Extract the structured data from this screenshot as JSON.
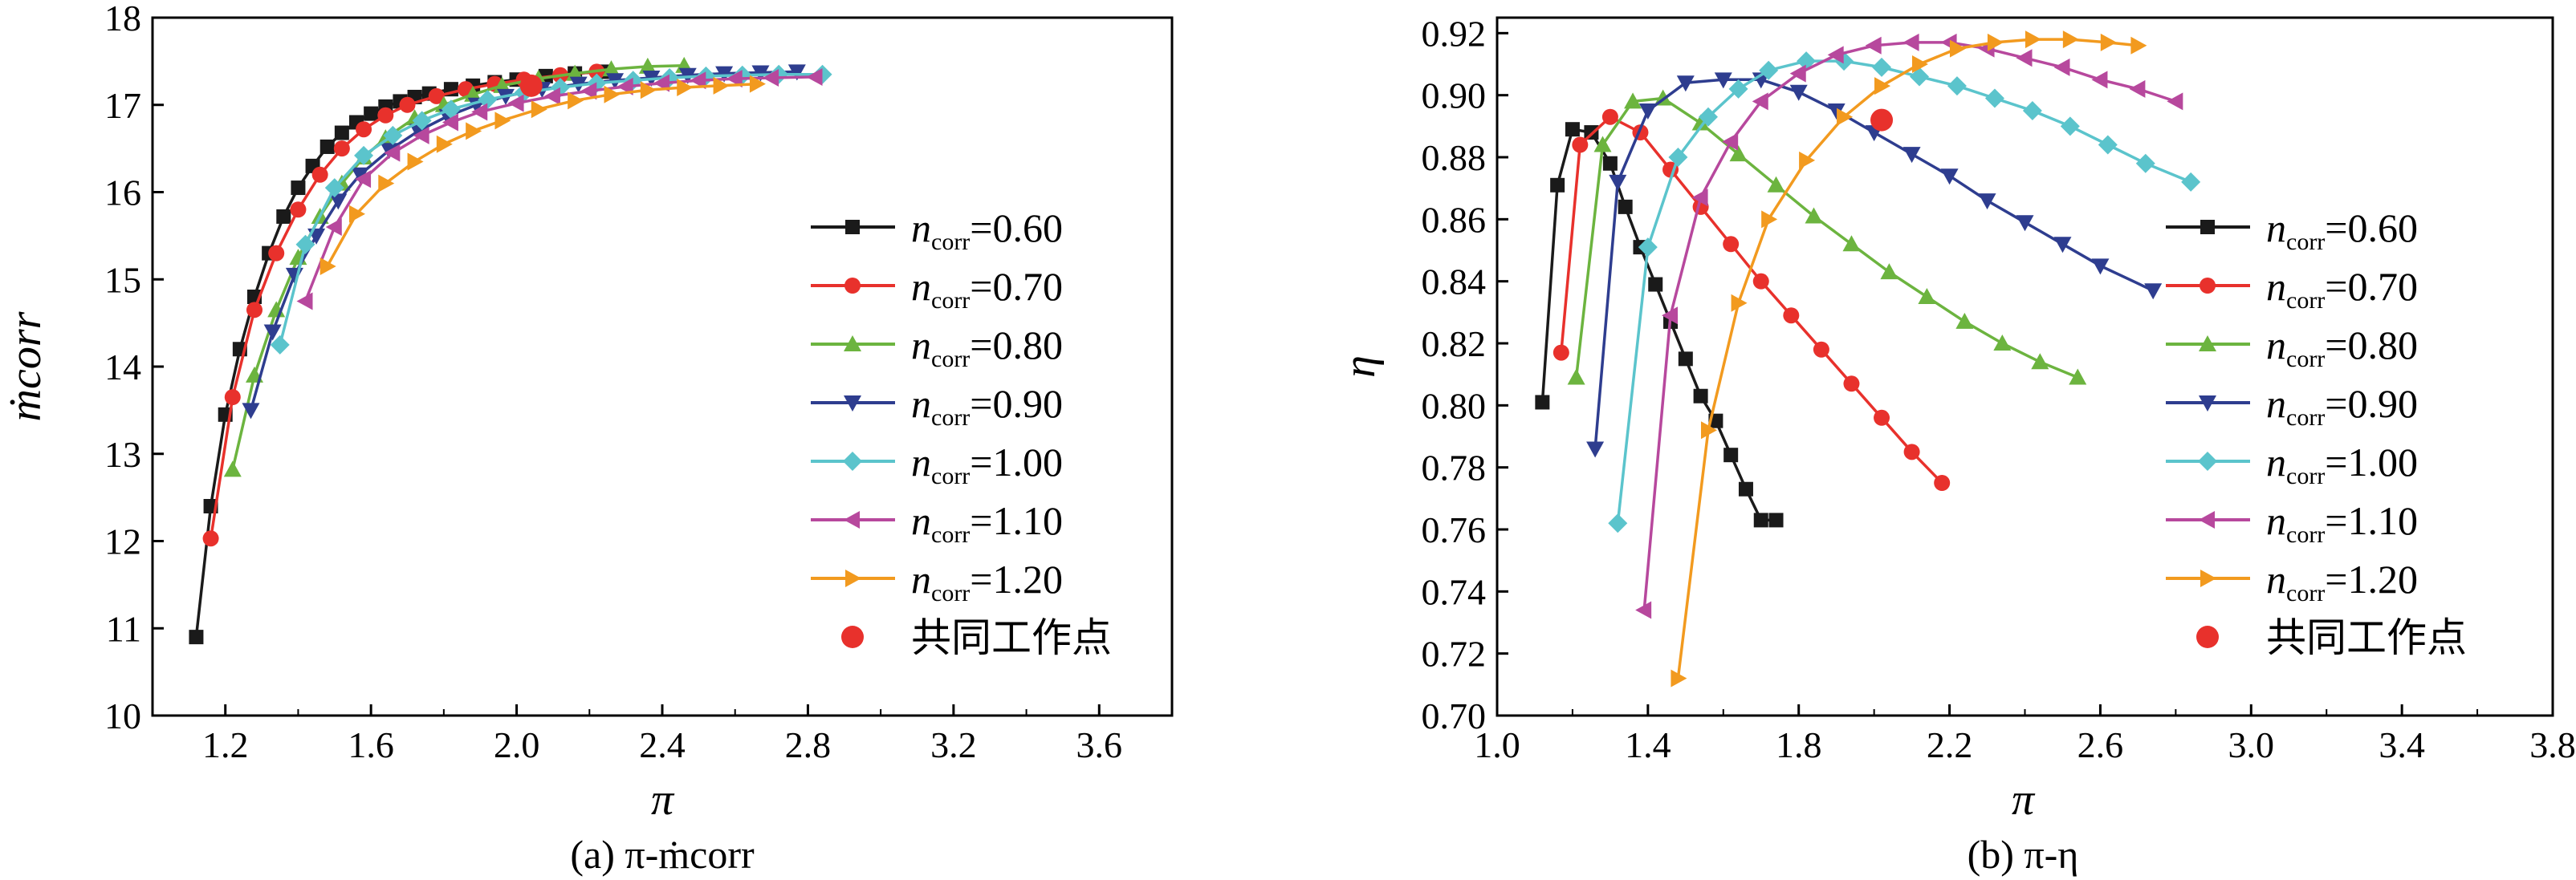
{
  "chart_data": [
    {
      "type": "line",
      "xlabel": "π",
      "ylabel": "ṁcorr",
      "caption": "(a) π-ṁcorr",
      "xlim": [
        1.0,
        3.8
      ],
      "ylim": [
        10,
        18
      ],
      "xticks": [
        "1.2",
        "1.6",
        "2.0",
        "2.4",
        "2.8",
        "3.2",
        "3.6"
      ],
      "yticks": [
        "10",
        "11",
        "12",
        "13",
        "14",
        "15",
        "16",
        "17",
        "18"
      ],
      "legend_position": "right",
      "series": [
        {
          "name": "ncorr=0.60",
          "color": "#1a1a1a",
          "marker": "square",
          "x": [
            1.12,
            1.16,
            1.2,
            1.24,
            1.28,
            1.32,
            1.36,
            1.4,
            1.44,
            1.48,
            1.52,
            1.56,
            1.6,
            1.64,
            1.68,
            1.72,
            1.76,
            1.82,
            1.88,
            1.94,
            2.0,
            2.08,
            2.16,
            2.24
          ],
          "y": [
            10.9,
            12.4,
            13.45,
            14.2,
            14.8,
            15.3,
            15.72,
            16.05,
            16.3,
            16.52,
            16.68,
            16.8,
            16.9,
            16.98,
            17.04,
            17.09,
            17.13,
            17.18,
            17.22,
            17.26,
            17.29,
            17.33,
            17.36,
            17.38
          ]
        },
        {
          "name": "ncorr=0.70",
          "color": "#e8312c",
          "marker": "circle",
          "x": [
            1.16,
            1.22,
            1.28,
            1.34,
            1.4,
            1.46,
            1.52,
            1.58,
            1.64,
            1.7,
            1.78,
            1.86,
            1.94,
            2.02,
            2.12,
            2.22
          ],
          "y": [
            12.03,
            13.65,
            14.65,
            15.3,
            15.8,
            16.2,
            16.5,
            16.72,
            16.88,
            17.0,
            17.1,
            17.18,
            17.24,
            17.29,
            17.34,
            17.38
          ]
        },
        {
          "name": "ncorr=0.80",
          "color": "#6cb43f",
          "marker": "triangle-up",
          "x": [
            1.22,
            1.28,
            1.34,
            1.4,
            1.46,
            1.52,
            1.58,
            1.64,
            1.72,
            1.8,
            1.88,
            1.96,
            2.06,
            2.16,
            2.26,
            2.36,
            2.46
          ],
          "y": [
            12.82,
            13.9,
            14.65,
            15.25,
            15.72,
            16.1,
            16.4,
            16.62,
            16.85,
            17.0,
            17.12,
            17.22,
            17.3,
            17.36,
            17.41,
            17.44,
            17.45
          ]
        },
        {
          "name": "ncorr=0.90",
          "color": "#2e3d8f",
          "marker": "triangle-down",
          "x": [
            1.27,
            1.33,
            1.39,
            1.45,
            1.51,
            1.57,
            1.65,
            1.73,
            1.81,
            1.89,
            1.97,
            2.07,
            2.17,
            2.27,
            2.37,
            2.47,
            2.57,
            2.67,
            2.77
          ],
          "y": [
            13.5,
            14.4,
            15.05,
            15.5,
            15.9,
            16.2,
            16.48,
            16.7,
            16.87,
            17.0,
            17.1,
            17.18,
            17.24,
            17.28,
            17.31,
            17.34,
            17.36,
            17.37,
            17.38
          ]
        },
        {
          "name": "ncorr=1.00",
          "color": "#5bc4cc",
          "marker": "diamond",
          "x": [
            1.35,
            1.42,
            1.5,
            1.58,
            1.66,
            1.74,
            1.82,
            1.92,
            2.02,
            2.12,
            2.22,
            2.32,
            2.42,
            2.52,
            2.62,
            2.72,
            2.84
          ],
          "y": [
            14.25,
            15.4,
            16.05,
            16.42,
            16.65,
            16.82,
            16.95,
            17.06,
            17.14,
            17.2,
            17.25,
            17.28,
            17.31,
            17.33,
            17.34,
            17.35,
            17.35
          ]
        },
        {
          "name": "ncorr=1.10",
          "color": "#b7489d",
          "marker": "triangle-left",
          "x": [
            1.42,
            1.5,
            1.58,
            1.66,
            1.74,
            1.82,
            1.9,
            2.0,
            2.1,
            2.2,
            2.3,
            2.4,
            2.5,
            2.6,
            2.7,
            2.82
          ],
          "y": [
            14.75,
            15.6,
            16.15,
            16.45,
            16.65,
            16.8,
            16.92,
            17.02,
            17.1,
            17.16,
            17.21,
            17.25,
            17.28,
            17.3,
            17.31,
            17.32
          ]
        },
        {
          "name": "ncorr=1.20",
          "color": "#f29a1f",
          "marker": "triangle-right",
          "x": [
            1.48,
            1.56,
            1.64,
            1.72,
            1.8,
            1.88,
            1.96,
            2.06,
            2.16,
            2.26,
            2.36,
            2.46,
            2.56,
            2.66
          ],
          "y": [
            15.15,
            15.75,
            16.1,
            16.35,
            16.55,
            16.7,
            16.82,
            16.95,
            17.05,
            17.12,
            17.17,
            17.2,
            17.22,
            17.24
          ]
        },
        {
          "name": "共同工作点",
          "color": "#e8312c",
          "marker": "big-circle",
          "x": [
            2.04
          ],
          "y": [
            17.22
          ]
        }
      ]
    },
    {
      "type": "line",
      "xlabel": "π",
      "ylabel": "η",
      "caption": "(b) π-η",
      "xlim": [
        1.0,
        3.8
      ],
      "ylim": [
        0.7,
        0.925
      ],
      "xticks": [
        "1.0",
        "1.4",
        "1.8",
        "2.2",
        "2.6",
        "3.0",
        "3.4",
        "3.8"
      ],
      "yticks": [
        "0.70",
        "0.72",
        "0.74",
        "0.76",
        "0.78",
        "0.80",
        "0.82",
        "0.84",
        "0.86",
        "0.88",
        "0.90",
        "0.92"
      ],
      "legend_position": "right",
      "series": [
        {
          "name": "ncorr=0.60",
          "color": "#1a1a1a",
          "marker": "square",
          "x": [
            1.12,
            1.16,
            1.2,
            1.25,
            1.3,
            1.34,
            1.38,
            1.42,
            1.46,
            1.5,
            1.54,
            1.58,
            1.62,
            1.66,
            1.7,
            1.74
          ],
          "y": [
            0.801,
            0.871,
            0.889,
            0.888,
            0.878,
            0.864,
            0.851,
            0.839,
            0.827,
            0.815,
            0.803,
            0.795,
            0.784,
            0.773,
            0.763,
            0.763
          ]
        },
        {
          "name": "ncorr=0.70",
          "color": "#e8312c",
          "marker": "circle",
          "x": [
            1.17,
            1.22,
            1.3,
            1.38,
            1.46,
            1.54,
            1.62,
            1.7,
            1.78,
            1.86,
            1.94,
            2.02,
            2.1,
            2.18
          ],
          "y": [
            0.817,
            0.884,
            0.893,
            0.888,
            0.876,
            0.864,
            0.852,
            0.84,
            0.829,
            0.818,
            0.807,
            0.796,
            0.785,
            0.775
          ]
        },
        {
          "name": "ncorr=0.80",
          "color": "#6cb43f",
          "marker": "triangle-up",
          "x": [
            1.21,
            1.28,
            1.36,
            1.44,
            1.54,
            1.64,
            1.74,
            1.84,
            1.94,
            2.04,
            2.14,
            2.24,
            2.34,
            2.44,
            2.54
          ],
          "y": [
            0.809,
            0.884,
            0.898,
            0.899,
            0.891,
            0.881,
            0.871,
            0.861,
            0.852,
            0.843,
            0.835,
            0.827,
            0.82,
            0.814,
            0.809
          ]
        },
        {
          "name": "ncorr=0.90",
          "color": "#2e3d8f",
          "marker": "triangle-down",
          "x": [
            1.26,
            1.32,
            1.4,
            1.5,
            1.6,
            1.7,
            1.8,
            1.9,
            2.0,
            2.1,
            2.2,
            2.3,
            2.4,
            2.5,
            2.6,
            2.74
          ],
          "y": [
            0.786,
            0.872,
            0.895,
            0.904,
            0.905,
            0.905,
            0.901,
            0.895,
            0.888,
            0.881,
            0.874,
            0.866,
            0.859,
            0.852,
            0.845,
            0.837
          ]
        },
        {
          "name": "ncorr=1.00",
          "color": "#5bc4cc",
          "marker": "diamond",
          "x": [
            1.32,
            1.4,
            1.48,
            1.56,
            1.64,
            1.72,
            1.82,
            1.92,
            2.02,
            2.12,
            2.22,
            2.32,
            2.42,
            2.52,
            2.62,
            2.72,
            2.84
          ],
          "y": [
            0.762,
            0.851,
            0.88,
            0.893,
            0.902,
            0.908,
            0.911,
            0.911,
            0.909,
            0.906,
            0.903,
            0.899,
            0.895,
            0.89,
            0.884,
            0.878,
            0.872
          ]
        },
        {
          "name": "ncorr=1.10",
          "color": "#b7489d",
          "marker": "triangle-left",
          "x": [
            1.39,
            1.46,
            1.54,
            1.62,
            1.7,
            1.8,
            1.9,
            2.0,
            2.1,
            2.2,
            2.3,
            2.4,
            2.5,
            2.6,
            2.7,
            2.8
          ],
          "y": [
            0.734,
            0.829,
            0.867,
            0.885,
            0.898,
            0.907,
            0.913,
            0.916,
            0.917,
            0.917,
            0.915,
            0.912,
            0.909,
            0.905,
            0.902,
            0.898
          ]
        },
        {
          "name": "ncorr=1.20",
          "color": "#f29a1f",
          "marker": "triangle-right",
          "x": [
            1.48,
            1.56,
            1.64,
            1.72,
            1.82,
            1.92,
            2.02,
            2.12,
            2.22,
            2.32,
            2.42,
            2.52,
            2.62,
            2.7
          ],
          "y": [
            0.712,
            0.792,
            0.833,
            0.86,
            0.879,
            0.893,
            0.903,
            0.91,
            0.915,
            0.917,
            0.918,
            0.918,
            0.917,
            0.916
          ]
        },
        {
          "name": "共同工作点",
          "color": "#e8312c",
          "marker": "big-circle",
          "x": [
            2.02
          ],
          "y": [
            0.892
          ]
        }
      ]
    }
  ]
}
